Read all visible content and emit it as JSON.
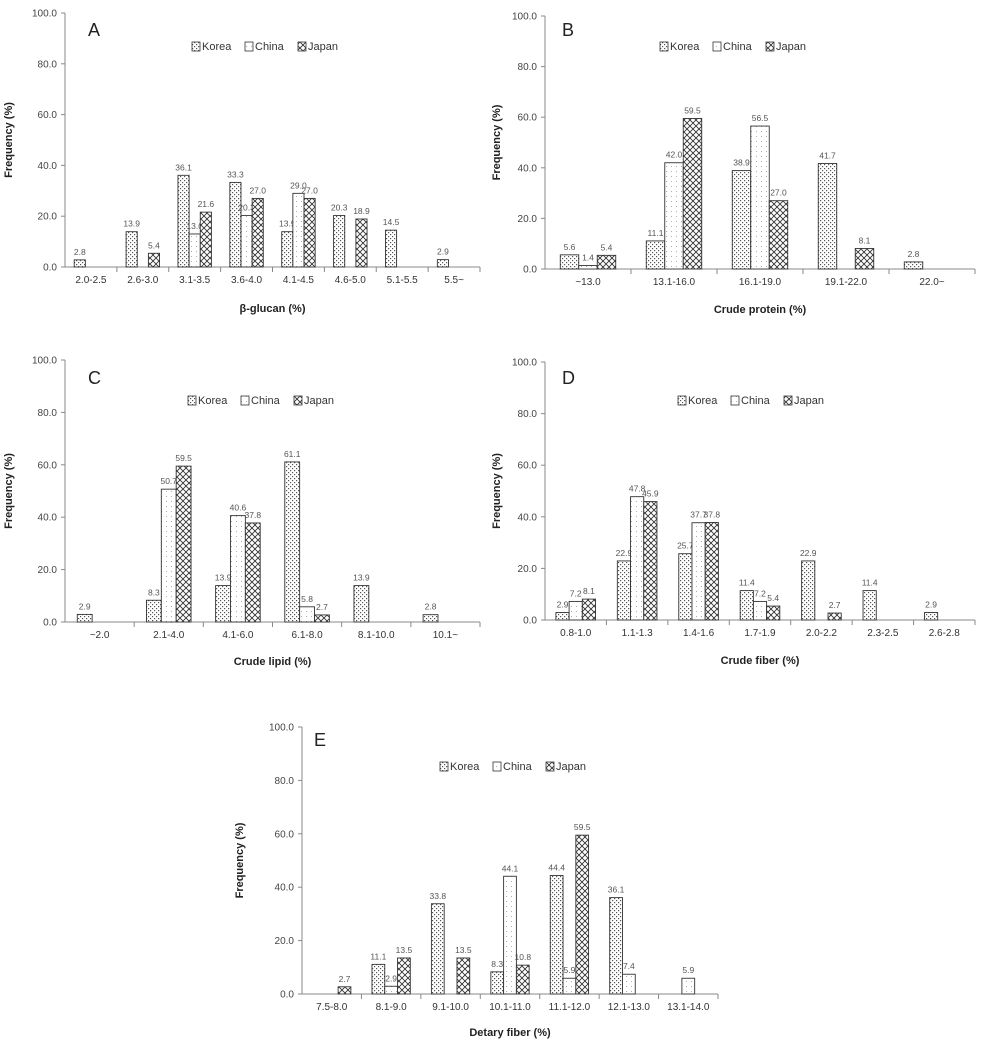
{
  "legend_labels": [
    "Korea",
    "China",
    "Japan"
  ],
  "chart_data": [
    {
      "id": "A",
      "type": "bar",
      "panel_label": "A",
      "xlabel": "β-glucan (%)",
      "ylabel": "Frequency (%)",
      "ylim": [
        0,
        100
      ],
      "yticks": [
        "0.0",
        "20.0",
        "40.0",
        "60.0",
        "80.0",
        "100.0"
      ],
      "legend_position": "top",
      "categories": [
        "2.0-2.5",
        "2.6-3.0",
        "3.1-3.5",
        "3.6-4.0",
        "4.1-4.5",
        "4.6-5.0",
        "5.1-5.5",
        "5.5~"
      ],
      "series": [
        {
          "name": "Korea",
          "pattern": "korea",
          "values": [
            2.8,
            13.9,
            36.1,
            33.3,
            13.9,
            20.3,
            14.5,
            2.9
          ]
        },
        {
          "name": "China",
          "pattern": "china",
          "values": [
            null,
            null,
            13.0,
            20.3,
            29.0,
            null,
            null,
            null
          ]
        },
        {
          "name": "Japan",
          "pattern": "japan",
          "values": [
            null,
            5.4,
            21.6,
            27.0,
            27.0,
            18.9,
            null,
            null
          ]
        }
      ]
    },
    {
      "id": "B",
      "type": "bar",
      "panel_label": "B",
      "xlabel": "Crude protein (%)",
      "ylabel": "Frequency (%)",
      "ylim": [
        0,
        100
      ],
      "yticks": [
        "0.0",
        "20.0",
        "40.0",
        "60.0",
        "80.0",
        "100.0"
      ],
      "legend_position": "top",
      "categories": [
        "~13.0",
        "13.1-16.0",
        "16.1-19.0",
        "19.1-22.0",
        "22.0~"
      ],
      "series": [
        {
          "name": "Korea",
          "pattern": "korea",
          "values": [
            5.6,
            11.1,
            38.9,
            41.7,
            2.8
          ]
        },
        {
          "name": "China",
          "pattern": "china",
          "values": [
            1.4,
            42.0,
            56.5,
            null,
            null
          ]
        },
        {
          "name": "Japan",
          "pattern": "japan",
          "values": [
            5.4,
            59.5,
            27.0,
            8.1,
            null
          ]
        }
      ]
    },
    {
      "id": "C",
      "type": "bar",
      "panel_label": "C",
      "xlabel": "Crude lipid (%)",
      "ylabel": "Frequency (%)",
      "ylim": [
        0,
        100
      ],
      "yticks": [
        "0.0",
        "20.0",
        "40.0",
        "60.0",
        "80.0",
        "100.0"
      ],
      "legend_position": "top",
      "categories": [
        "~2.0",
        "2.1-4.0",
        "4.1-6.0",
        "6.1-8.0",
        "8.1-10.0",
        "10.1~"
      ],
      "series": [
        {
          "name": "Korea",
          "pattern": "korea",
          "values": [
            2.9,
            8.3,
            13.9,
            61.1,
            13.9,
            2.8
          ]
        },
        {
          "name": "China",
          "pattern": "china",
          "values": [
            null,
            50.7,
            40.6,
            5.8,
            null,
            null
          ]
        },
        {
          "name": "Japan",
          "pattern": "japan",
          "values": [
            null,
            59.5,
            37.8,
            2.7,
            null,
            null
          ]
        }
      ]
    },
    {
      "id": "D",
      "type": "bar",
      "panel_label": "D",
      "xlabel": "Crude fiber (%)",
      "ylabel": "Frequency (%)",
      "ylim": [
        0,
        100
      ],
      "yticks": [
        "0.0",
        "20.0",
        "40.0",
        "60.0",
        "80.0",
        "100.0"
      ],
      "legend_position": "top",
      "categories": [
        "0.8-1.0",
        "1.1-1.3",
        "1.4-1.6",
        "1.7-1.9",
        "2.0-2.2",
        "2.3-2.5",
        "2.6-2.8"
      ],
      "series": [
        {
          "name": "Korea",
          "pattern": "korea",
          "values": [
            2.9,
            22.9,
            25.7,
            11.4,
            22.9,
            11.4,
            2.9
          ]
        },
        {
          "name": "China",
          "pattern": "china",
          "values": [
            7.2,
            47.8,
            37.7,
            7.2,
            null,
            null,
            null
          ]
        },
        {
          "name": "Japan",
          "pattern": "japan",
          "values": [
            8.1,
            45.9,
            37.8,
            5.4,
            2.7,
            null,
            null
          ]
        }
      ]
    },
    {
      "id": "E",
      "type": "bar",
      "panel_label": "E",
      "xlabel": "Detary fiber (%)",
      "ylabel": "Frequency (%)",
      "ylim": [
        0,
        100
      ],
      "yticks": [
        "0.0",
        "20.0",
        "40.0",
        "60.0",
        "80.0",
        "100.0"
      ],
      "legend_position": "top",
      "categories": [
        "7.5-8.0",
        "8.1-9.0",
        "9.1-10.0",
        "10.1-11.0",
        "11.1-12.0",
        "12.1-13.0",
        "13.1-14.0"
      ],
      "series": [
        {
          "name": "Korea",
          "pattern": "korea",
          "values": [
            null,
            11.1,
            33.8,
            8.3,
            44.4,
            36.1,
            null
          ]
        },
        {
          "name": "China",
          "pattern": "china",
          "values": [
            null,
            2.9,
            null,
            44.1,
            5.9,
            7.4,
            5.9
          ]
        },
        {
          "name": "Japan",
          "pattern": "japan",
          "values": [
            2.7,
            13.5,
            13.5,
            10.8,
            59.5,
            null,
            null
          ]
        }
      ]
    }
  ]
}
